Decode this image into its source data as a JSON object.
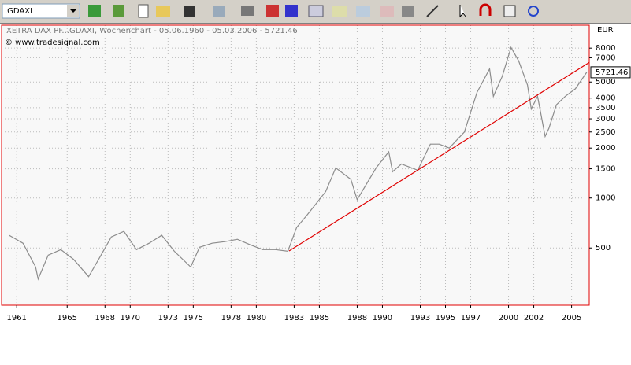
{
  "toolbar": {
    "symbol": ".GDAXI"
  },
  "chart": {
    "type": "line",
    "title": "XETRA DAX PF...GDAXI, Wochenchart - 05.06.1960 - 05.03.2006 - 5721.46",
    "copyright": "© www.tradesignal.com",
    "currency": "EUR",
    "last_value": 5721.46,
    "log_scale": true,
    "grid": true,
    "xlim": [
      1959.8,
      2006.4
    ],
    "xticks": [
      1961,
      1965,
      1968,
      1970,
      1973,
      1975,
      1978,
      1980,
      1983,
      1985,
      1988,
      1990,
      1993,
      1995,
      1997,
      2000,
      2002,
      2005
    ],
    "ylim": [
      226,
      11000
    ],
    "yticks": [
      500,
      1000,
      1500,
      2000,
      2500,
      3000,
      3500,
      4000,
      5000,
      7000,
      8000
    ],
    "x": [
      1960.4,
      1961.5,
      1962.5,
      1962.7,
      1963.5,
      1964.5,
      1965.5,
      1966.7,
      1967.5,
      1968.5,
      1969.5,
      1970.5,
      1971.5,
      1972.5,
      1973.5,
      1974.8,
      1975.5,
      1976.5,
      1977.5,
      1978.5,
      1979.5,
      1980.5,
      1981.5,
      1982.5,
      1983.2,
      1984,
      1985.5,
      1986.3,
      1987.5,
      1988,
      1989.5,
      1990.5,
      1990.8,
      1991.5,
      1992.8,
      1993.8,
      1994.5,
      1995.3,
      1996.5,
      1997.5,
      1998.5,
      1998.8,
      1999.5,
      2000.2,
      2000.8,
      2001.5,
      2001.8,
      2002.3,
      2002.9,
      2003.2,
      2003.8,
      2004.5,
      2005.3,
      2006.2
    ],
    "series": [
      {
        "color": "#8c8c8c",
        "values": [
          596,
          534,
          384,
          325,
          453,
          489,
          428,
          336,
          428,
          583,
          630,
          489,
          534,
          596,
          478,
          384,
          505,
          534,
          546,
          564,
          523,
          489,
          489,
          478,
          665,
          785,
          1093,
          1520,
          1296,
          978,
          1520,
          1898,
          1440,
          1603,
          1470,
          2113,
          2113,
          2000,
          2500,
          4325,
          6000,
          4100,
          5400,
          8080,
          6700,
          4800,
          3440,
          4100,
          2350,
          2630,
          3650,
          4100,
          4550,
          5721.46
        ]
      }
    ],
    "trendline": {
      "color": "#e00000",
      "x": [
        1982.6,
        2006.4
      ],
      "values": [
        480,
        6560
      ]
    }
  }
}
